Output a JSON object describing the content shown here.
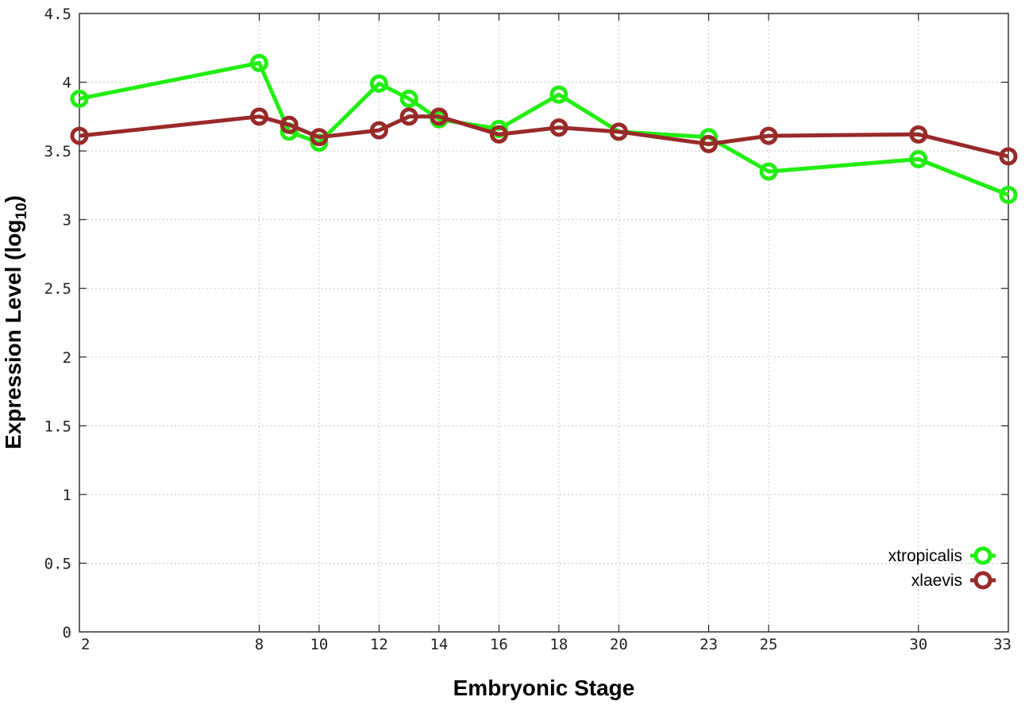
{
  "chart_data": {
    "type": "line",
    "title": "",
    "xlabel": "Embryonic Stage",
    "ylabel_main": "Expression Level (log",
    "ylabel_sub": "10",
    "ylabel_close": ")",
    "xlim": [
      2,
      33
    ],
    "ylim": [
      0,
      4.5
    ],
    "x_ticks": [
      2,
      8,
      10,
      12,
      14,
      16,
      18,
      20,
      23,
      25,
      30,
      33
    ],
    "y_ticks": [
      0,
      0.5,
      1,
      1.5,
      2,
      2.5,
      3,
      3.5,
      4,
      4.5
    ],
    "y_tick_labels": [
      "0",
      "0.5",
      "1",
      "1.5",
      "2",
      "2.5",
      "3",
      "3.5",
      "4",
      "4.5"
    ],
    "grid": true,
    "legend_position": "bottom-right",
    "x": [
      2,
      8,
      9,
      10,
      12,
      13,
      14,
      16,
      18,
      20,
      23,
      25,
      30,
      33
    ],
    "series": [
      {
        "name": "xtropicalis",
        "color": "#22ee11",
        "values": [
          3.88,
          4.14,
          3.64,
          3.56,
          3.99,
          3.88,
          3.73,
          3.66,
          3.91,
          3.64,
          3.6,
          3.35,
          3.44,
          3.18
        ]
      },
      {
        "name": "xlaevis",
        "color": "#992a2a",
        "values": [
          3.61,
          3.75,
          3.69,
          3.6,
          3.65,
          3.75,
          3.75,
          3.62,
          3.67,
          3.64,
          3.55,
          3.61,
          3.62,
          3.46
        ]
      }
    ]
  }
}
